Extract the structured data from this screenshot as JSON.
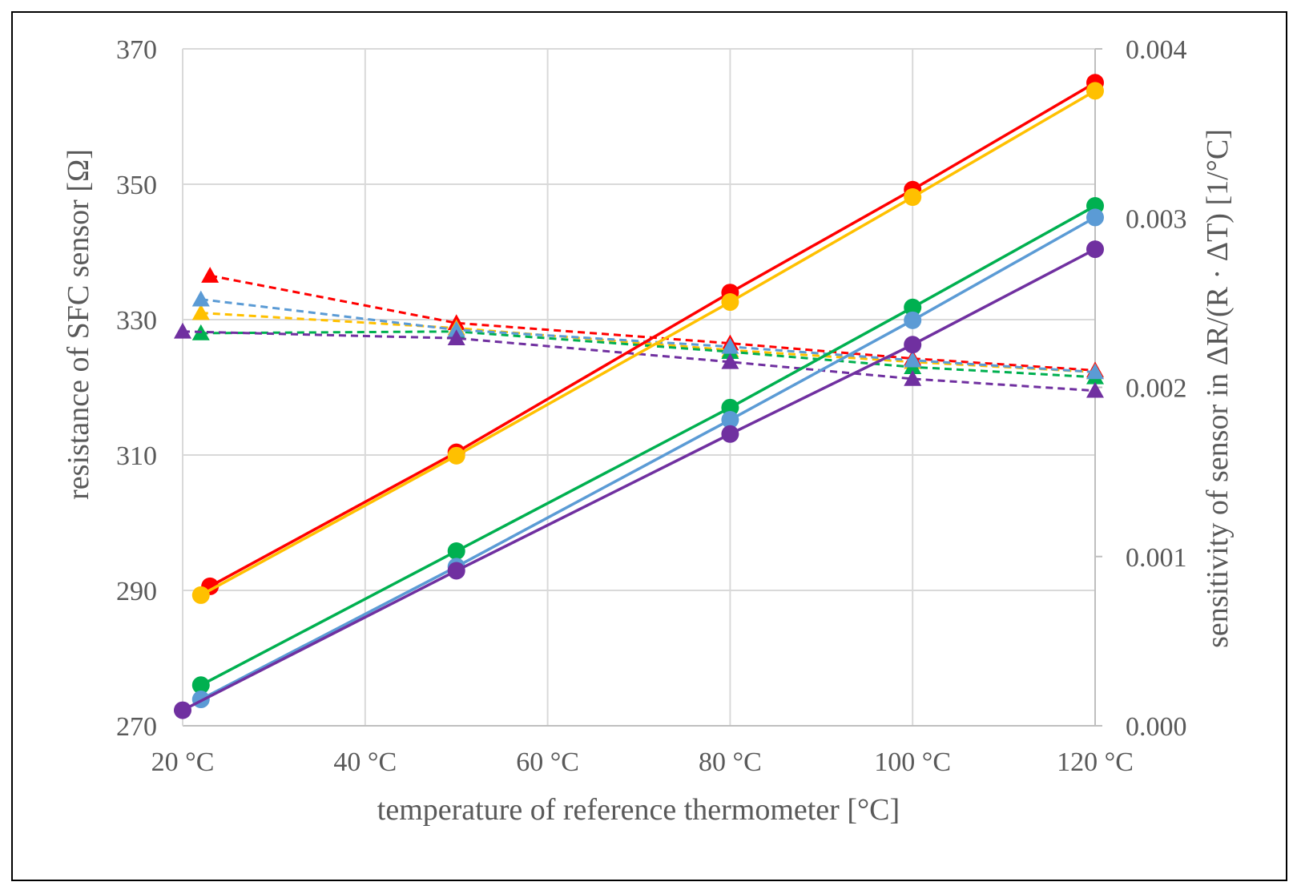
{
  "chart_data": {
    "type": "line",
    "title": "",
    "xlabel": "temperature of reference thermometer [°C]",
    "ylabel": "resistance of SFC sensor [Ω]",
    "y2label": "sensitivity of sensor in ΔR/(R · ΔT) [1/°C]",
    "xlim": [
      20,
      120
    ],
    "ylim": [
      270,
      370
    ],
    "y2lim": [
      0.0,
      0.004
    ],
    "x_ticks": [
      20,
      40,
      60,
      80,
      100,
      120
    ],
    "x_tick_labels": [
      "20 °C",
      "40 °C",
      "60 °C",
      "80 °C",
      "100 °C",
      "120 °C"
    ],
    "y_ticks": [
      270,
      290,
      310,
      330,
      350,
      370
    ],
    "y_tick_labels": [
      "270",
      "290",
      "310",
      "330",
      "350",
      "370"
    ],
    "y2_ticks": [
      0.0,
      0.001,
      0.002,
      0.003,
      0.004
    ],
    "y2_tick_labels": [
      "0.000",
      "0.001",
      "0.002",
      "0.003",
      "0.004"
    ],
    "grid": true,
    "legend": "none",
    "resistance_series": [
      {
        "name": "red",
        "color": "#ff0000",
        "x": [
          23,
          50,
          80,
          100,
          120
        ],
        "values": [
          290.6,
          310.4,
          334.0,
          349.2,
          365.0
        ]
      },
      {
        "name": "yellow",
        "color": "#ffc000",
        "x": [
          22,
          50,
          80,
          100,
          120
        ],
        "values": [
          289.3,
          309.9,
          332.6,
          348.1,
          363.8
        ]
      },
      {
        "name": "green",
        "color": "#00b050",
        "x": [
          22,
          50,
          80,
          100,
          120
        ],
        "values": [
          276.0,
          295.8,
          317.0,
          331.8,
          346.8
        ]
      },
      {
        "name": "blue",
        "color": "#5b9bd5",
        "x": [
          22,
          50,
          80,
          100,
          120
        ],
        "values": [
          273.9,
          293.5,
          315.2,
          329.9,
          345.1
        ]
      },
      {
        "name": "purple",
        "color": "#7030a0",
        "x": [
          20,
          50,
          80,
          100,
          120
        ],
        "values": [
          272.3,
          292.9,
          313.1,
          326.3,
          340.4
        ]
      }
    ],
    "sensitivity_series": [
      {
        "name": "red",
        "color": "#ff0000",
        "x": [
          23,
          50,
          80,
          100,
          120
        ],
        "values": [
          0.00266,
          0.00238,
          0.00226,
          0.00217,
          0.0021
        ]
      },
      {
        "name": "yellow",
        "color": "#ffc000",
        "x": [
          22,
          50,
          80,
          100,
          120
        ],
        "values": [
          0.00244,
          0.00235,
          0.00222,
          0.00215,
          0.00209
        ]
      },
      {
        "name": "green",
        "color": "#00b050",
        "x": [
          22,
          50,
          80,
          100,
          120
        ],
        "values": [
          0.00232,
          0.00233,
          0.00221,
          0.00212,
          0.00206
        ]
      },
      {
        "name": "blue",
        "color": "#5b9bd5",
        "x": [
          22,
          50,
          80,
          100,
          120
        ],
        "values": [
          0.00252,
          0.00234,
          0.00224,
          0.00216,
          0.00209
        ]
      },
      {
        "name": "purple",
        "color": "#7030a0",
        "x": [
          20,
          50,
          80,
          100,
          120
        ],
        "values": [
          0.00233,
          0.00229,
          0.00215,
          0.00205,
          0.00198
        ]
      }
    ]
  }
}
